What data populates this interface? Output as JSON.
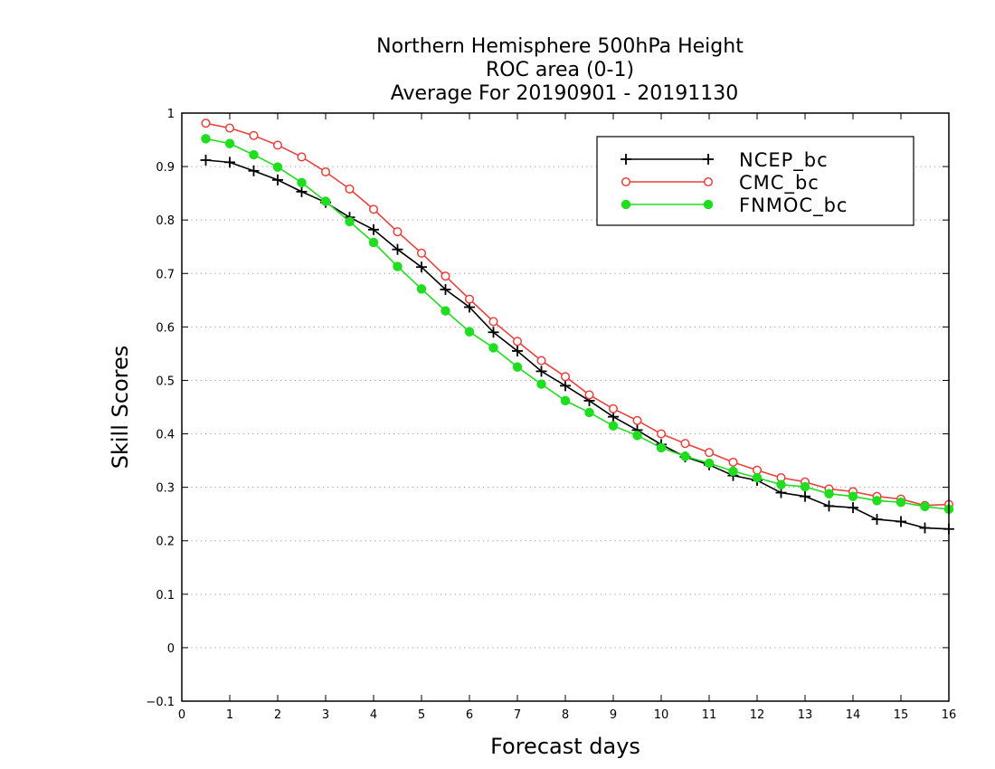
{
  "chart_data": {
    "type": "line",
    "title_lines": [
      "Northern Hemisphere 500hPa Height",
      "ROC area (0-1)",
      "Average For 20190901 - 20191130"
    ],
    "xlabel": "Forecast days",
    "ylabel": "Skill Scores",
    "xlim": [
      0,
      16
    ],
    "ylim": [
      -0.1,
      1
    ],
    "x_ticks": [
      0,
      1,
      2,
      3,
      4,
      5,
      6,
      7,
      8,
      9,
      10,
      11,
      12,
      13,
      14,
      15,
      16
    ],
    "y_ticks": [
      -0.1,
      0,
      0.1,
      0.2,
      0.3,
      0.4,
      0.5,
      0.6,
      0.7,
      0.8,
      0.9,
      1
    ],
    "grid": "horizontal dotted",
    "legend_position": "top-right",
    "x": [
      0.5,
      1,
      1.5,
      2,
      2.5,
      3,
      3.5,
      4,
      4.5,
      5,
      5.5,
      6,
      6.5,
      7,
      7.5,
      8,
      8.5,
      9,
      9.5,
      10,
      10.5,
      11,
      11.5,
      12,
      12.5,
      13,
      13.5,
      14,
      14.5,
      15,
      15.5,
      16
    ],
    "series": [
      {
        "name": "NCEP_bc",
        "color": "#000000",
        "marker": "plus",
        "values": [
          0.912,
          0.908,
          0.892,
          0.875,
          0.853,
          0.833,
          0.805,
          0.782,
          0.745,
          0.712,
          0.67,
          0.637,
          0.59,
          0.555,
          0.517,
          0.49,
          0.462,
          0.432,
          0.407,
          0.38,
          0.357,
          0.342,
          0.322,
          0.313,
          0.29,
          0.283,
          0.265,
          0.262,
          0.24,
          0.236,
          0.224,
          0.222
        ]
      },
      {
        "name": "CMC_bc",
        "color": "#e8413c",
        "marker": "open-circle",
        "values": [
          0.981,
          0.972,
          0.958,
          0.94,
          0.918,
          0.89,
          0.858,
          0.82,
          0.778,
          0.738,
          0.695,
          0.652,
          0.61,
          0.573,
          0.537,
          0.507,
          0.473,
          0.447,
          0.425,
          0.4,
          0.382,
          0.365,
          0.347,
          0.332,
          0.318,
          0.31,
          0.297,
          0.292,
          0.283,
          0.278,
          0.266,
          0.268
        ]
      },
      {
        "name": "FNMOC_bc",
        "color": "#1fdd1f",
        "marker": "filled-circle",
        "values": [
          0.952,
          0.943,
          0.922,
          0.899,
          0.87,
          0.835,
          0.797,
          0.758,
          0.713,
          0.671,
          0.63,
          0.591,
          0.561,
          0.525,
          0.493,
          0.462,
          0.44,
          0.415,
          0.397,
          0.374,
          0.358,
          0.345,
          0.33,
          0.318,
          0.305,
          0.301,
          0.288,
          0.283,
          0.275,
          0.272,
          0.264,
          0.259
        ]
      }
    ]
  }
}
